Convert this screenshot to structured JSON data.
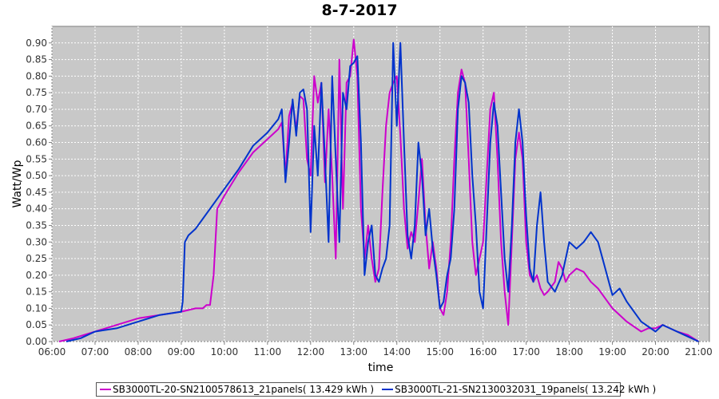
{
  "chart_data": {
    "type": "line",
    "title": "8-7-2017",
    "xlabel": "time",
    "ylabel": "Watt/Wp",
    "xlim": [
      "06:00",
      "21:15"
    ],
    "ylim": [
      0,
      0.95
    ],
    "x_ticks": [
      "06:00",
      "07:00",
      "08:00",
      "09:00",
      "10:00",
      "11:00",
      "12:00",
      "13:00",
      "14:00",
      "15:00",
      "16:00",
      "17:00",
      "18:00",
      "19:00",
      "20:00",
      "21:00"
    ],
    "y_ticks": [
      "0.00",
      "0.05",
      "0.10",
      "0.15",
      "0.20",
      "0.25",
      "0.30",
      "0.35",
      "0.40",
      "0.45",
      "0.50",
      "0.55",
      "0.60",
      "0.65",
      "0.70",
      "0.75",
      "0.80",
      "0.85",
      "0.90"
    ],
    "grid": true,
    "legend_position": "bottom",
    "series": [
      {
        "name": "SB3000TL-20-SN2100578613_21panels( 13.429 kWh )",
        "color": "#cc00cc",
        "points": [
          [
            "06:10",
            0.0
          ],
          [
            "06:30",
            0.01
          ],
          [
            "07:00",
            0.03
          ],
          [
            "07:30",
            0.05
          ],
          [
            "08:00",
            0.07
          ],
          [
            "08:30",
            0.08
          ],
          [
            "09:00",
            0.09
          ],
          [
            "09:20",
            0.1
          ],
          [
            "09:30",
            0.1
          ],
          [
            "09:35",
            0.11
          ],
          [
            "09:40",
            0.11
          ],
          [
            "09:45",
            0.2
          ],
          [
            "09:50",
            0.4
          ],
          [
            "10:00",
            0.44
          ],
          [
            "10:20",
            0.51
          ],
          [
            "10:40",
            0.57
          ],
          [
            "11:00",
            0.61
          ],
          [
            "11:15",
            0.64
          ],
          [
            "11:20",
            0.66
          ],
          [
            "11:25",
            0.5
          ],
          [
            "11:30",
            0.68
          ],
          [
            "11:35",
            0.72
          ],
          [
            "11:40",
            0.64
          ],
          [
            "11:45",
            0.74
          ],
          [
            "11:50",
            0.73
          ],
          [
            "11:55",
            0.55
          ],
          [
            "12:00",
            0.5
          ],
          [
            "12:05",
            0.8
          ],
          [
            "12:10",
            0.72
          ],
          [
            "12:15",
            0.78
          ],
          [
            "12:20",
            0.48
          ],
          [
            "12:25",
            0.7
          ],
          [
            "12:30",
            0.5
          ],
          [
            "12:35",
            0.25
          ],
          [
            "12:40",
            0.85
          ],
          [
            "12:45",
            0.4
          ],
          [
            "12:50",
            0.78
          ],
          [
            "12:55",
            0.8
          ],
          [
            "13:00",
            0.91
          ],
          [
            "13:05",
            0.8
          ],
          [
            "13:10",
            0.4
          ],
          [
            "13:15",
            0.25
          ],
          [
            "13:20",
            0.35
          ],
          [
            "13:25",
            0.25
          ],
          [
            "13:30",
            0.18
          ],
          [
            "13:35",
            0.22
          ],
          [
            "13:40",
            0.45
          ],
          [
            "13:45",
            0.65
          ],
          [
            "13:50",
            0.75
          ],
          [
            "13:55",
            0.78
          ],
          [
            "14:00",
            0.8
          ],
          [
            "14:05",
            0.62
          ],
          [
            "14:10",
            0.4
          ],
          [
            "14:15",
            0.28
          ],
          [
            "14:20",
            0.33
          ],
          [
            "14:25",
            0.3
          ],
          [
            "14:30",
            0.42
          ],
          [
            "14:35",
            0.55
          ],
          [
            "14:40",
            0.35
          ],
          [
            "14:45",
            0.22
          ],
          [
            "14:50",
            0.3
          ],
          [
            "14:55",
            0.22
          ],
          [
            "15:00",
            0.1
          ],
          [
            "15:05",
            0.08
          ],
          [
            "15:10",
            0.15
          ],
          [
            "15:15",
            0.3
          ],
          [
            "15:20",
            0.55
          ],
          [
            "15:25",
            0.75
          ],
          [
            "15:30",
            0.82
          ],
          [
            "15:35",
            0.78
          ],
          [
            "15:40",
            0.55
          ],
          [
            "15:45",
            0.3
          ],
          [
            "15:50",
            0.2
          ],
          [
            "15:55",
            0.25
          ],
          [
            "16:00",
            0.3
          ],
          [
            "16:05",
            0.5
          ],
          [
            "16:10",
            0.7
          ],
          [
            "16:15",
            0.75
          ],
          [
            "16:20",
            0.55
          ],
          [
            "16:25",
            0.3
          ],
          [
            "16:30",
            0.15
          ],
          [
            "16:35",
            0.05
          ],
          [
            "16:40",
            0.3
          ],
          [
            "16:45",
            0.55
          ],
          [
            "16:50",
            0.63
          ],
          [
            "16:55",
            0.55
          ],
          [
            "17:00",
            0.3
          ],
          [
            "17:05",
            0.2
          ],
          [
            "17:10",
            0.18
          ],
          [
            "17:15",
            0.2
          ],
          [
            "17:20",
            0.16
          ],
          [
            "17:25",
            0.14
          ],
          [
            "17:30",
            0.15
          ],
          [
            "17:40",
            0.18
          ],
          [
            "17:45",
            0.24
          ],
          [
            "17:50",
            0.22
          ],
          [
            "17:55",
            0.18
          ],
          [
            "18:00",
            0.2
          ],
          [
            "18:10",
            0.22
          ],
          [
            "18:20",
            0.21
          ],
          [
            "18:30",
            0.18
          ],
          [
            "18:40",
            0.16
          ],
          [
            "19:00",
            0.1
          ],
          [
            "19:20",
            0.06
          ],
          [
            "19:40",
            0.03
          ],
          [
            "19:50",
            0.04
          ],
          [
            "20:00",
            0.04
          ],
          [
            "20:10",
            0.05
          ],
          [
            "20:20",
            0.04
          ],
          [
            "20:30",
            0.03
          ],
          [
            "20:45",
            0.02
          ],
          [
            "21:00",
            0.0
          ]
        ]
      },
      {
        "name": "SB3000TL-21-SN2130032031_19panels( 13.242 kWh )",
        "color": "#0033cc",
        "points": [
          [
            "06:20",
            0.0
          ],
          [
            "06:40",
            0.01
          ],
          [
            "07:00",
            0.03
          ],
          [
            "07:30",
            0.04
          ],
          [
            "08:00",
            0.06
          ],
          [
            "08:30",
            0.08
          ],
          [
            "09:00",
            0.09
          ],
          [
            "09:02",
            0.12
          ],
          [
            "09:05",
            0.3
          ],
          [
            "09:10",
            0.32
          ],
          [
            "09:20",
            0.34
          ],
          [
            "09:40",
            0.4
          ],
          [
            "10:00",
            0.46
          ],
          [
            "10:20",
            0.52
          ],
          [
            "10:40",
            0.59
          ],
          [
            "11:00",
            0.63
          ],
          [
            "11:15",
            0.67
          ],
          [
            "11:20",
            0.7
          ],
          [
            "11:25",
            0.48
          ],
          [
            "11:30",
            0.6
          ],
          [
            "11:35",
            0.73
          ],
          [
            "11:40",
            0.62
          ],
          [
            "11:45",
            0.75
          ],
          [
            "11:50",
            0.76
          ],
          [
            "11:55",
            0.7
          ],
          [
            "12:00",
            0.33
          ],
          [
            "12:05",
            0.65
          ],
          [
            "12:10",
            0.5
          ],
          [
            "12:15",
            0.78
          ],
          [
            "12:20",
            0.55
          ],
          [
            "12:25",
            0.3
          ],
          [
            "12:30",
            0.8
          ],
          [
            "12:35",
            0.55
          ],
          [
            "12:40",
            0.3
          ],
          [
            "12:45",
            0.75
          ],
          [
            "12:50",
            0.7
          ],
          [
            "12:55",
            0.83
          ],
          [
            "13:00",
            0.84
          ],
          [
            "13:05",
            0.86
          ],
          [
            "13:10",
            0.6
          ],
          [
            "13:15",
            0.2
          ],
          [
            "13:20",
            0.3
          ],
          [
            "13:25",
            0.35
          ],
          [
            "13:30",
            0.2
          ],
          [
            "13:35",
            0.18
          ],
          [
            "13:40",
            0.22
          ],
          [
            "13:45",
            0.25
          ],
          [
            "13:50",
            0.35
          ],
          [
            "13:55",
            0.9
          ],
          [
            "14:00",
            0.65
          ],
          [
            "14:05",
            0.9
          ],
          [
            "14:10",
            0.6
          ],
          [
            "14:15",
            0.32
          ],
          [
            "14:20",
            0.25
          ],
          [
            "14:25",
            0.35
          ],
          [
            "14:30",
            0.6
          ],
          [
            "14:35",
            0.5
          ],
          [
            "14:40",
            0.32
          ],
          [
            "14:45",
            0.4
          ],
          [
            "14:50",
            0.28
          ],
          [
            "14:55",
            0.2
          ],
          [
            "15:00",
            0.1
          ],
          [
            "15:05",
            0.12
          ],
          [
            "15:10",
            0.2
          ],
          [
            "15:15",
            0.25
          ],
          [
            "15:20",
            0.4
          ],
          [
            "15:25",
            0.7
          ],
          [
            "15:30",
            0.8
          ],
          [
            "15:35",
            0.78
          ],
          [
            "15:40",
            0.72
          ],
          [
            "15:45",
            0.5
          ],
          [
            "15:50",
            0.35
          ],
          [
            "15:55",
            0.15
          ],
          [
            "16:00",
            0.1
          ],
          [
            "16:05",
            0.35
          ],
          [
            "16:10",
            0.6
          ],
          [
            "16:15",
            0.72
          ],
          [
            "16:20",
            0.65
          ],
          [
            "16:25",
            0.45
          ],
          [
            "16:30",
            0.25
          ],
          [
            "16:35",
            0.15
          ],
          [
            "16:40",
            0.35
          ],
          [
            "16:45",
            0.6
          ],
          [
            "16:50",
            0.7
          ],
          [
            "16:55",
            0.6
          ],
          [
            "17:00",
            0.38
          ],
          [
            "17:05",
            0.22
          ],
          [
            "17:10",
            0.18
          ],
          [
            "17:15",
            0.35
          ],
          [
            "17:20",
            0.45
          ],
          [
            "17:25",
            0.3
          ],
          [
            "17:30",
            0.18
          ],
          [
            "17:40",
            0.15
          ],
          [
            "17:50",
            0.2
          ],
          [
            "18:00",
            0.3
          ],
          [
            "18:10",
            0.28
          ],
          [
            "18:20",
            0.3
          ],
          [
            "18:30",
            0.33
          ],
          [
            "18:40",
            0.3
          ],
          [
            "18:50",
            0.22
          ],
          [
            "19:00",
            0.14
          ],
          [
            "19:10",
            0.16
          ],
          [
            "19:20",
            0.12
          ],
          [
            "19:40",
            0.06
          ],
          [
            "20:00",
            0.03
          ],
          [
            "20:10",
            0.05
          ],
          [
            "20:20",
            0.04
          ],
          [
            "20:40",
            0.02
          ],
          [
            "21:00",
            0.0
          ]
        ]
      }
    ]
  }
}
